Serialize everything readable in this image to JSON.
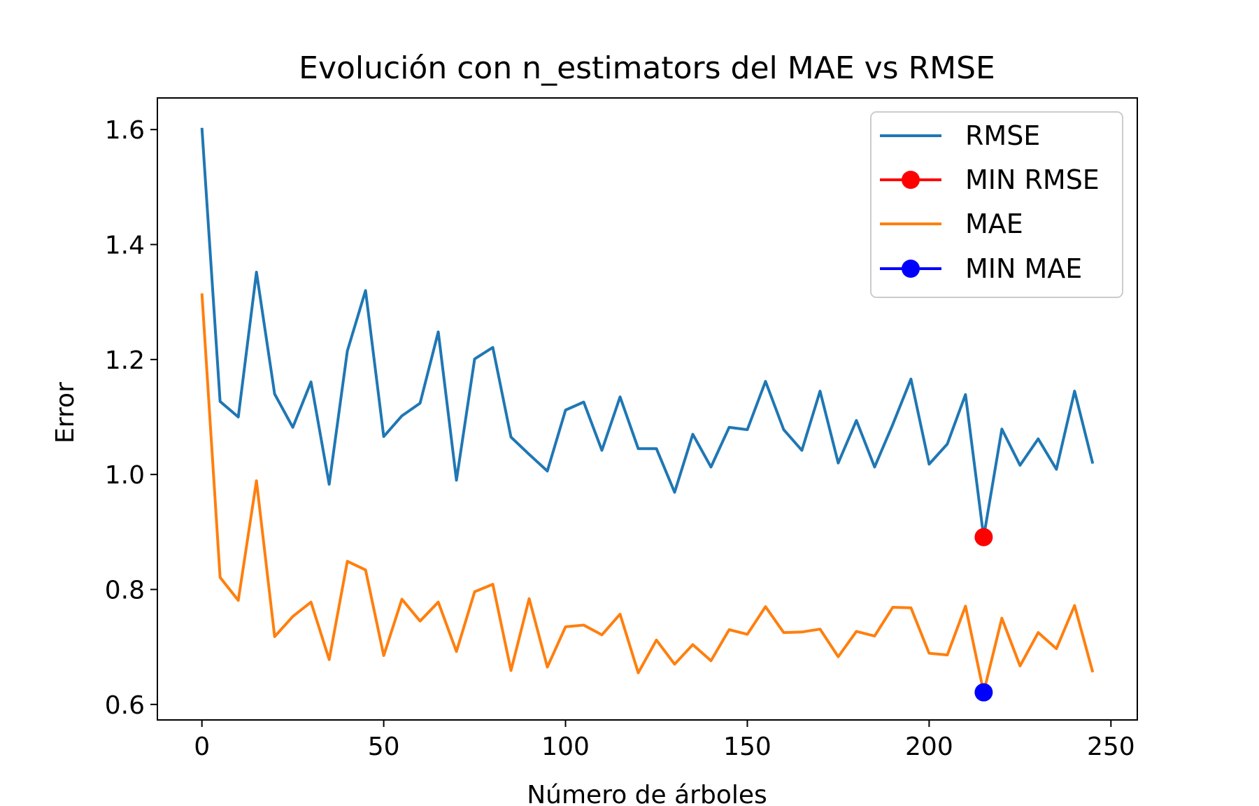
{
  "chart_data": {
    "type": "line",
    "title": "Evolución con n_estimators del MAE vs RMSE",
    "xlabel": "Número de árboles",
    "ylabel": "Error",
    "xlim": [
      -12.25,
      257.25
    ],
    "ylim": [
      0.573,
      1.655
    ],
    "xticks": [
      0,
      50,
      100,
      150,
      200,
      250
    ],
    "yticks": [
      0.6,
      0.8,
      1.0,
      1.2,
      1.4,
      1.6
    ],
    "xtick_labels": [
      "0",
      "50",
      "100",
      "150",
      "200",
      "250"
    ],
    "ytick_labels": [
      "0.6",
      "0.8",
      "1.0",
      "1.2",
      "1.4",
      "1.6"
    ],
    "grid": false,
    "legend_position": "top-right",
    "x": [
      0,
      5,
      10,
      15,
      20,
      25,
      30,
      35,
      40,
      45,
      50,
      55,
      60,
      65,
      70,
      75,
      80,
      85,
      90,
      95,
      100,
      105,
      110,
      115,
      120,
      125,
      130,
      135,
      140,
      145,
      150,
      155,
      160,
      165,
      170,
      175,
      180,
      185,
      190,
      195,
      200,
      205,
      210,
      215,
      220,
      225,
      230,
      235,
      240,
      245
    ],
    "series": [
      {
        "name": "RMSE",
        "color": "#1f77b4",
        "marker": "none",
        "values": [
          1.603,
          1.127,
          1.1,
          1.352,
          1.14,
          1.082,
          1.161,
          0.983,
          1.215,
          1.32,
          1.066,
          1.102,
          1.124,
          1.248,
          0.99,
          1.201,
          1.221,
          1.065,
          1.035,
          1.006,
          1.112,
          1.126,
          1.042,
          1.135,
          1.045,
          1.045,
          0.969,
          1.07,
          1.013,
          1.082,
          1.078,
          1.162,
          1.078,
          1.042,
          1.145,
          1.02,
          1.094,
          1.013,
          1.087,
          1.166,
          1.018,
          1.053,
          1.139,
          0.891,
          1.079,
          1.016,
          1.062,
          1.009,
          1.145,
          1.019
        ]
      },
      {
        "name": "MIN RMSE",
        "color": "#ff0000",
        "marker": "circle",
        "points": [
          {
            "x": 215,
            "y": 0.891
          }
        ]
      },
      {
        "name": "MAE",
        "color": "#ff7f0e",
        "marker": "none",
        "values": [
          1.315,
          0.821,
          0.781,
          0.989,
          0.718,
          0.753,
          0.778,
          0.678,
          0.849,
          0.834,
          0.685,
          0.783,
          0.745,
          0.778,
          0.692,
          0.796,
          0.809,
          0.659,
          0.784,
          0.665,
          0.735,
          0.738,
          0.721,
          0.757,
          0.655,
          0.712,
          0.67,
          0.704,
          0.676,
          0.73,
          0.722,
          0.77,
          0.725,
          0.726,
          0.731,
          0.683,
          0.727,
          0.719,
          0.769,
          0.768,
          0.689,
          0.686,
          0.771,
          0.621,
          0.75,
          0.667,
          0.725,
          0.697,
          0.772,
          0.656
        ]
      },
      {
        "name": "MIN MAE",
        "color": "#0000ff",
        "marker": "circle",
        "points": [
          {
            "x": 215,
            "y": 0.621
          }
        ]
      }
    ]
  }
}
